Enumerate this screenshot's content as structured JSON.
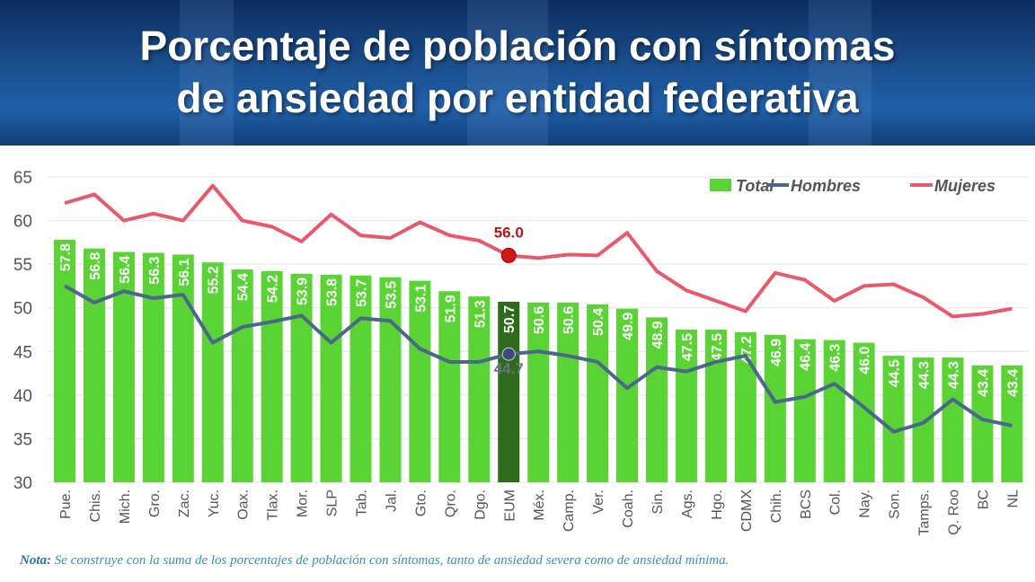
{
  "title_line1": "Porcentaje de población con síntomas",
  "title_line2": "de ansiedad por entidad federativa",
  "note_label": "Nota:",
  "note_text": " Se construye con la suma de los porcentajes de población con síntomas, tanto de ansiedad severa como de ansiedad mínima.",
  "chart_data": {
    "type": "bar",
    "title": "",
    "ylim": [
      30,
      65
    ],
    "yticks": [
      30,
      35,
      40,
      45,
      50,
      55,
      60,
      65
    ],
    "grid": true,
    "legend_position": "top-right",
    "colors": {
      "Total": "#5ad334",
      "Total_highlight": "#2e6b1c",
      "Hombres": "#4a6889",
      "Mujeres": "#e8596a"
    },
    "categories": [
      "Pue.",
      "Chis.",
      "Mich.",
      "Gro.",
      "Zac.",
      "Yuc.",
      "Oax.",
      "Tlax.",
      "Mor.",
      "SLP",
      "Tab.",
      "Jal.",
      "Gto.",
      "Qro.",
      "Dgo.",
      "EUM",
      "Méx.",
      "Camp.",
      "Ver.",
      "Coah.",
      "Sin.",
      "Ags.",
      "Hgo.",
      "CDMX",
      "Chih.",
      "BCS",
      "Col.",
      "Nay.",
      "Son.",
      "Tamps.",
      "Q. Roo",
      "BC",
      "NL"
    ],
    "highlight": "EUM",
    "series": [
      {
        "name": "Total",
        "type": "bar",
        "values": [
          57.8,
          56.8,
          56.4,
          56.3,
          56.1,
          55.2,
          54.4,
          54.2,
          53.9,
          53.8,
          53.7,
          53.5,
          53.1,
          51.9,
          51.3,
          50.7,
          50.6,
          50.6,
          50.4,
          49.9,
          48.9,
          47.5,
          47.5,
          47.2,
          46.9,
          46.4,
          46.3,
          46.0,
          44.5,
          44.3,
          44.3,
          43.4,
          43.4
        ]
      },
      {
        "name": "Hombres",
        "type": "line",
        "values": [
          52.5,
          50.6,
          51.9,
          51.1,
          51.5,
          46.0,
          47.8,
          48.4,
          49.1,
          46.0,
          48.8,
          48.5,
          45.3,
          43.8,
          43.8,
          44.7,
          45.0,
          44.5,
          43.8,
          40.8,
          43.2,
          42.7,
          43.8,
          44.5,
          39.2,
          39.8,
          41.3,
          38.6,
          35.8,
          36.8,
          39.5,
          37.2,
          36.5
        ]
      },
      {
        "name": "Mujeres",
        "type": "line",
        "values": [
          62.0,
          63.0,
          60.0,
          60.8,
          60.0,
          64.0,
          60.0,
          59.3,
          57.6,
          60.7,
          58.3,
          58.0,
          59.8,
          58.3,
          57.7,
          56.0,
          55.7,
          56.1,
          56.0,
          58.6,
          54.2,
          52.0,
          50.8,
          49.6,
          54.0,
          53.2,
          50.8,
          52.5,
          52.7,
          51.2,
          49.0,
          49.3,
          49.9
        ]
      }
    ],
    "annotations": {
      "Mujeres_EUM": "56.0",
      "Hombres_EUM": "44.7"
    }
  }
}
